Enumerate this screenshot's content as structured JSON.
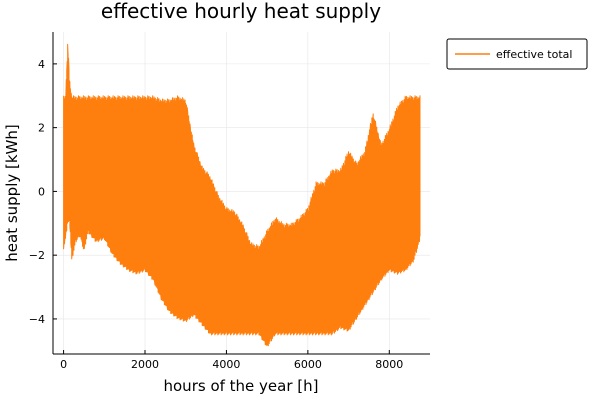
{
  "chart_data": {
    "type": "line",
    "title": "effective hourly heat supply",
    "xlabel": "hours of the year [h]",
    "ylabel": "heat supply [kWh]",
    "xlim": [
      -260,
      9000
    ],
    "ylim": [
      -5.1,
      5.0
    ],
    "x_ticks": [
      0,
      2000,
      4000,
      6000,
      8000
    ],
    "y_ticks": [
      -4,
      -2,
      0,
      2,
      4
    ],
    "x_tick_labels": [
      "0",
      "2000",
      "4000",
      "6000",
      "8000"
    ],
    "y_tick_labels": [
      "−4",
      "−2",
      "0",
      "2",
      "4"
    ],
    "grid": true,
    "legend_position": "top-right outside",
    "series": [
      {
        "name": "effective total",
        "color": "#ff7f0e",
        "envelope": {
          "x": [
            0,
            50,
            100,
            150,
            200,
            300,
            400,
            500,
            600,
            800,
            1000,
            1200,
            1400,
            1600,
            1800,
            2000,
            2200,
            2400,
            2600,
            2800,
            3000,
            3200,
            3400,
            3600,
            3800,
            4000,
            4200,
            4400,
            4600,
            4800,
            5000,
            5200,
            5400,
            5600,
            5800,
            6000,
            6200,
            6400,
            6600,
            6800,
            7000,
            7200,
            7400,
            7600,
            7800,
            8000,
            8200,
            8400,
            8600,
            8760
          ],
          "max": [
            3.0,
            3.0,
            4.7,
            3.5,
            3.0,
            3.0,
            3.0,
            3.0,
            3.0,
            3.0,
            3.0,
            3.0,
            3.0,
            3.0,
            3.0,
            3.0,
            3.0,
            2.9,
            2.9,
            3.0,
            2.9,
            1.5,
            0.8,
            0.5,
            -0.1,
            -0.5,
            -0.6,
            -1.0,
            -1.6,
            -1.7,
            -1.2,
            -0.8,
            -1.0,
            -1.0,
            -0.8,
            -0.5,
            0.3,
            0.3,
            0.7,
            0.7,
            1.3,
            0.9,
            1.3,
            2.5,
            1.5,
            2.0,
            2.7,
            3.0,
            3.0,
            3.0
          ],
          "min": [
            -1.8,
            -1.5,
            -1.0,
            -1.0,
            -2.2,
            -1.6,
            -1.4,
            -1.9,
            -1.3,
            -1.6,
            -1.5,
            -2.0,
            -2.3,
            -2.5,
            -2.6,
            -2.5,
            -2.8,
            -3.4,
            -3.8,
            -4.0,
            -4.1,
            -3.9,
            -4.2,
            -4.5,
            -4.5,
            -4.5,
            -4.5,
            -4.5,
            -4.5,
            -4.5,
            -4.9,
            -4.5,
            -4.5,
            -4.5,
            -4.5,
            -4.5,
            -4.5,
            -4.5,
            -4.5,
            -4.3,
            -4.4,
            -4.0,
            -3.6,
            -3.2,
            -2.8,
            -2.5,
            -2.6,
            -2.5,
            -2.2,
            -1.5
          ]
        }
      }
    ]
  }
}
